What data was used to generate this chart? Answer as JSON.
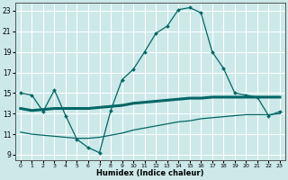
{
  "xlabel": "Humidex (Indice chaleur)",
  "ylabel": "",
  "bg_color": "#cce8e8",
  "grid_color": "#ffffff",
  "line_color": "#006666",
  "xlim": [
    -0.5,
    23.5
  ],
  "ylim": [
    8.5,
    23.8
  ],
  "yticks": [
    9,
    11,
    13,
    15,
    17,
    19,
    21,
    23
  ],
  "xticks": [
    0,
    1,
    2,
    3,
    4,
    5,
    6,
    7,
    8,
    9,
    10,
    11,
    12,
    13,
    14,
    15,
    16,
    17,
    18,
    19,
    20,
    21,
    22,
    23
  ],
  "xtick_labels": [
    "0",
    "1",
    "2",
    "3",
    "4",
    "5",
    "6",
    "7",
    "8",
    "9",
    "10",
    "11",
    "12",
    "13",
    "14",
    "15",
    "16",
    "17",
    "18",
    "19",
    "20",
    "21",
    "22",
    "23"
  ],
  "curve1_x": [
    0,
    1,
    2,
    3,
    4,
    5,
    6,
    7,
    8,
    9,
    10,
    11,
    12,
    13,
    14,
    15,
    16,
    17,
    18,
    19,
    20,
    21,
    22,
    23
  ],
  "curve1_y": [
    15.0,
    14.8,
    13.2,
    15.3,
    12.8,
    10.5,
    9.7,
    9.2,
    13.3,
    16.3,
    17.3,
    19.0,
    20.8,
    21.5,
    23.1,
    23.3,
    22.8,
    19.0,
    17.4,
    15.0,
    14.8,
    14.6,
    12.8,
    13.2
  ],
  "curve2_x": [
    0,
    1,
    2,
    3,
    4,
    5,
    6,
    7,
    8,
    9,
    10,
    11,
    12,
    13,
    14,
    15,
    16,
    17,
    18,
    19,
    20,
    21,
    22,
    23
  ],
  "curve2_y": [
    13.5,
    13.3,
    13.4,
    13.5,
    13.5,
    13.5,
    13.5,
    13.6,
    13.7,
    13.8,
    14.0,
    14.1,
    14.2,
    14.3,
    14.4,
    14.5,
    14.5,
    14.6,
    14.6,
    14.6,
    14.6,
    14.6,
    14.6,
    14.6
  ],
  "curve3_x": [
    0,
    1,
    2,
    3,
    4,
    5,
    6,
    7,
    8,
    9,
    10,
    11,
    12,
    13,
    14,
    15,
    16,
    17,
    18,
    19,
    20,
    21,
    22,
    23
  ],
  "curve3_y": [
    11.2,
    11.0,
    10.9,
    10.8,
    10.7,
    10.6,
    10.6,
    10.7,
    10.9,
    11.1,
    11.4,
    11.6,
    11.8,
    12.0,
    12.2,
    12.3,
    12.5,
    12.6,
    12.7,
    12.8,
    12.9,
    12.9,
    12.9,
    13.0
  ]
}
